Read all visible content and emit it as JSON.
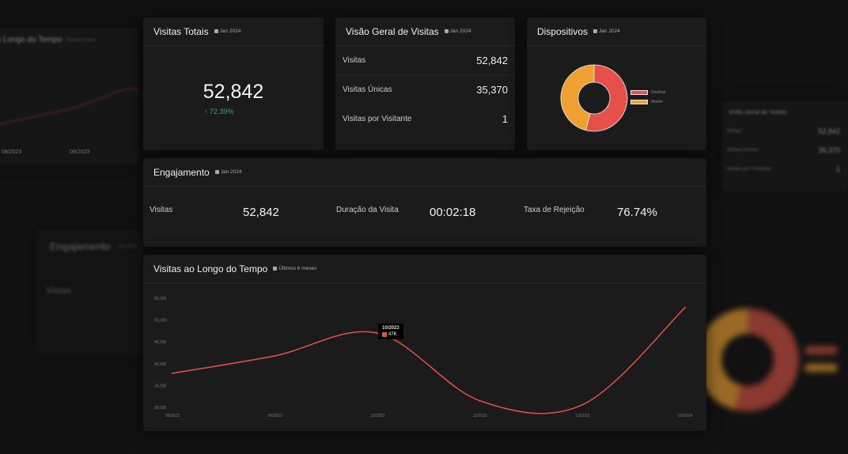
{
  "background": {
    "time_card": {
      "title": "Visitas ao Longo do Tempo",
      "subtitle": "Últimos 6 meses",
      "x_labels": [
        "08/2023",
        "09/2023"
      ]
    },
    "engagement_card": {
      "title": "Engajamento",
      "subtitle": "Jan 2024",
      "label": "Visitas"
    },
    "overview_card": {
      "title": "Visão Geral de Visitas",
      "subtitle": "Jan 2024",
      "rows": [
        {
          "label": "Visitas",
          "value": "52,842"
        },
        {
          "label": "Visitas Únicas",
          "value": "35,370"
        },
        {
          "label": "Visitas por Visitante",
          "value": "1"
        }
      ]
    }
  },
  "total_visits": {
    "title": "Visitas Totais",
    "subtitle": "Jan 2024",
    "value": "52,842",
    "change": "72.39%",
    "change_color": "#2eaa6a"
  },
  "overview": {
    "title": "Visão Geral de Visitas",
    "subtitle": "Jan 2024",
    "rows": [
      {
        "label": "Visitas",
        "value": "52,842"
      },
      {
        "label": "Visitas Únicas",
        "value": "35,370"
      },
      {
        "label": "Visitas por Visitante",
        "value": "1"
      }
    ]
  },
  "devices": {
    "title": "Dispositivos",
    "subtitle": "Jan 2024",
    "legend": [
      {
        "label": "Desktop",
        "color": "#e5504a"
      },
      {
        "label": "Mobile",
        "color": "#f0a033"
      }
    ]
  },
  "engagement": {
    "title": "Engajamento",
    "subtitle": "Jan 2024",
    "metrics": [
      {
        "label": "Visitas",
        "value": "52,842"
      },
      {
        "label": "Duração da Visita",
        "value": "00:02:18"
      },
      {
        "label": "Taxa de Rejeição",
        "value": "76.74%"
      }
    ]
  },
  "chart_data": [
    {
      "type": "line",
      "title": "Visitas ao Longo do Tempo",
      "subtitle": "Últimos 6 meses",
      "categories": [
        "08/2023",
        "09/2023",
        "10/2023",
        "11/2023",
        "12/2023",
        "01/2024"
      ],
      "values": [
        37800,
        41800,
        47000,
        31500,
        30600,
        52842
      ],
      "ylim": [
        30000,
        55000
      ],
      "yticks": [
        "55,000",
        "50,000",
        "45,000",
        "40,000",
        "35,000",
        "30,000"
      ],
      "color": "#e5504a",
      "grid": false,
      "tooltip": {
        "title": "10/2023",
        "value": "47K"
      }
    },
    {
      "type": "pie",
      "title": "Dispositivos",
      "categories": [
        "Desktop",
        "Mobile"
      ],
      "values": [
        54,
        46
      ],
      "colors": [
        "#e5504a",
        "#f0a033"
      ],
      "donut": true,
      "legend": "right"
    }
  ]
}
